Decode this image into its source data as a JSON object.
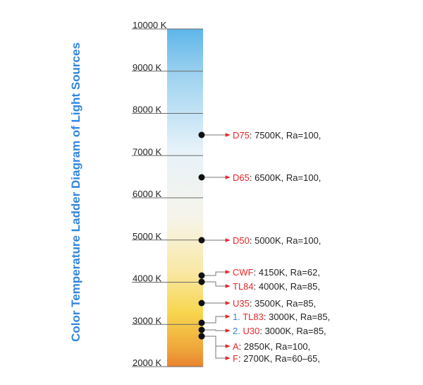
{
  "title": "Color Temperature Ladder Diagram of Light Sources",
  "colors": {
    "title": "#2f86e0",
    "source_name": "#e8262a",
    "index_number": "#2f86e0",
    "gradient": [
      "#5eb6ea",
      "#9fd3f0",
      "#e6f2f9",
      "#f6f4ea",
      "#f9e8a4",
      "#f7d64e",
      "#efa53a",
      "#e8832f"
    ]
  },
  "chart_data": {
    "type": "ladder",
    "scale": "color temperature (K)",
    "range": [
      2000,
      10000
    ],
    "ticks": [
      {
        "value": 10000,
        "label": "10000 K"
      },
      {
        "value": 9000,
        "label": "9000 K"
      },
      {
        "value": 8000,
        "label": "8000 K"
      },
      {
        "value": 7000,
        "label": "7000 K"
      },
      {
        "value": 6000,
        "label": "6000 K"
      },
      {
        "value": 5000,
        "label": "5000 K"
      },
      {
        "value": 4000,
        "label": "4000 K"
      },
      {
        "value": 3000,
        "label": "3000 K"
      },
      {
        "value": 2000,
        "label": "2000 K"
      }
    ],
    "sources": [
      {
        "name": "D75",
        "value": 7500,
        "detail": "7500K,  Ra=100,",
        "number": ""
      },
      {
        "name": "D65",
        "value": 6500,
        "detail": "6500K,  Ra=100,",
        "number": ""
      },
      {
        "name": "D50",
        "value": 5000,
        "detail": "5000K,  Ra=100,",
        "number": ""
      },
      {
        "name": "CWF",
        "value": 4150,
        "detail": "4150K,  Ra=62,",
        "number": ""
      },
      {
        "name": "TL84",
        "value": 4000,
        "detail": "4000K,  Ra=85,",
        "number": ""
      },
      {
        "name": "U35",
        "value": 3500,
        "detail": "3500K,  Ra=85,",
        "number": ""
      },
      {
        "name": "TL83",
        "value": 3000,
        "detail": "3000K,  Ra=85,",
        "number": "1."
      },
      {
        "name": "U30",
        "value": 3000,
        "detail": "3000K,  Ra=85,",
        "number": "2."
      },
      {
        "name": "A",
        "value": 2850,
        "detail": "2850K,  Ra=100,",
        "number": ""
      },
      {
        "name": "F",
        "value": 2700,
        "detail": "2700K,  Ra=60–65,",
        "number": ""
      }
    ]
  }
}
